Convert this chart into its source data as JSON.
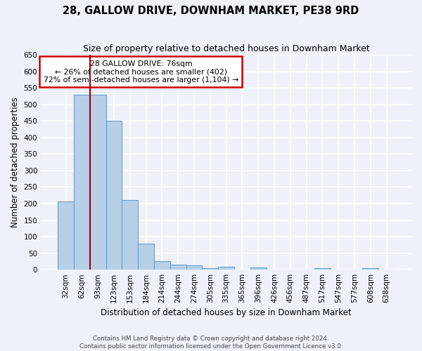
{
  "title": "28, GALLOW DRIVE, DOWNHAM MARKET, PE38 9RD",
  "subtitle": "Size of property relative to detached houses in Downham Market",
  "xlabel": "Distribution of detached houses by size in Downham Market",
  "ylabel": "Number of detached properties",
  "footer_line1": "Contains HM Land Registry data © Crown copyright and database right 2024.",
  "footer_line2": "Contains public sector information licensed under the Open Government Licence v3.0.",
  "categories": [
    "32sqm",
    "62sqm",
    "93sqm",
    "123sqm",
    "153sqm",
    "184sqm",
    "214sqm",
    "244sqm",
    "274sqm",
    "305sqm",
    "335sqm",
    "365sqm",
    "396sqm",
    "426sqm",
    "456sqm",
    "487sqm",
    "517sqm",
    "547sqm",
    "577sqm",
    "608sqm",
    "638sqm"
  ],
  "values": [
    207,
    530,
    530,
    450,
    210,
    78,
    25,
    15,
    13,
    5,
    8,
    0,
    7,
    0,
    0,
    0,
    5,
    0,
    0,
    5,
    0
  ],
  "bar_color": "#b8cfe8",
  "bar_edge_color": "#6b9dc8",
  "red_line_x": 1.5,
  "annotation_text_line1": "28 GALLOW DRIVE: 76sqm",
  "annotation_text_line2": "← 26% of detached houses are smaller (402)",
  "annotation_text_line3": "72% of semi-detached houses are larger (1,104) →",
  "annotation_box_facecolor": "#ffffff",
  "annotation_box_edgecolor": "#cc0000",
  "ylim": [
    0,
    650
  ],
  "yticks": [
    0,
    50,
    100,
    150,
    200,
    250,
    300,
    350,
    400,
    450,
    500,
    550,
    600,
    650
  ],
  "bg_color": "#eef2f8",
  "grid_color": "#ffffff",
  "title_fontsize": 10.5,
  "subtitle_fontsize": 9,
  "axis_label_fontsize": 8.5,
  "tick_fontsize": 7.5,
  "footer_fontsize": 6.2
}
